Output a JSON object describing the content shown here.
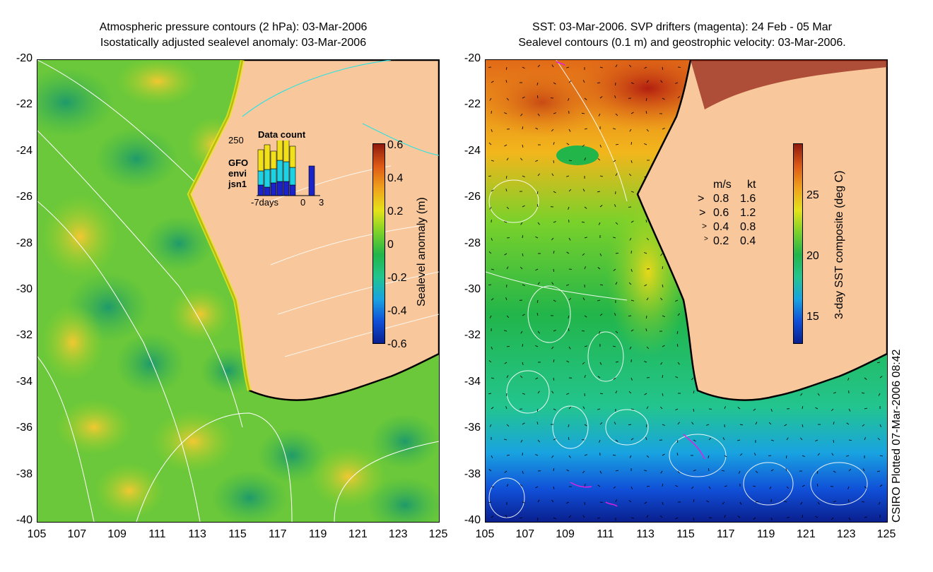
{
  "left_panel": {
    "title_line1": "Atmospheric pressure contours (2 hPa): 03-Mar-2006",
    "title_line2": "Isostatically adjusted sealevel anomaly: 03-Mar-2006",
    "colorbar": {
      "label": "Sealevel anomaly (m)",
      "ticks": [
        "0.6",
        "0.4",
        "0.2",
        "0",
        "-0.2",
        "-0.4",
        "-0.6"
      ],
      "colors": [
        "#0a1f8f",
        "#1050d8",
        "#19a3e0",
        "#23c58e",
        "#22b54a",
        "#7ad12a",
        "#e4e21a",
        "#f0a21c",
        "#de5a16",
        "#8f1a0e"
      ]
    },
    "inset": {
      "title": "Data count",
      "ymax_label": "250",
      "x_labels": [
        "-7days",
        "0",
        "3"
      ],
      "missions": [
        "GFO",
        "envi",
        "jsn1"
      ],
      "mission_colors": [
        "#f2e11a",
        "#1ed2e6",
        "#1a23c8"
      ]
    }
  },
  "right_panel": {
    "title_line1": "SST: 03-Mar-2006. SVP drifters (magenta): 24 Feb - 05 Mar",
    "title_line2": "Sealevel contours (0.1 m) and geostrophic velocity: 03-Mar-2006.",
    "colorbar": {
      "label": "3-day SST composite (deg C)",
      "ticks": [
        "25",
        "20",
        "15"
      ],
      "colors": [
        "#0a1f8f",
        "#1050d8",
        "#19a3e0",
        "#23c58e",
        "#22b54a",
        "#7ad12a",
        "#e4e21a",
        "#f0a21c",
        "#de5a16",
        "#8f1a0e"
      ]
    },
    "velocity_legend": {
      "header_ms": "m/s",
      "header_kt": "kt",
      "rows": [
        {
          "ms": "0.8",
          "kt": "1.6"
        },
        {
          "ms": "0.6",
          "kt": "1.2"
        },
        {
          "ms": "0.4",
          "kt": "0.8"
        },
        {
          "ms": "0.2",
          "kt": "0.4"
        }
      ]
    }
  },
  "axes": {
    "y_ticks": [
      "-20",
      "-22",
      "-24",
      "-26",
      "-28",
      "-30",
      "-32",
      "-34",
      "-36",
      "-38",
      "-40"
    ],
    "x_ticks": [
      "105",
      "107",
      "109",
      "111",
      "113",
      "115",
      "117",
      "119",
      "121",
      "123",
      "125"
    ]
  },
  "credit": "CSIRO Plotted 07-Mar-2006 08:42",
  "colors": {
    "land": "#f8c89c",
    "coast": "#000000",
    "contour": "#ffffff",
    "drifter": "#e020e0",
    "pressure_cyan": "#30e0e0"
  }
}
